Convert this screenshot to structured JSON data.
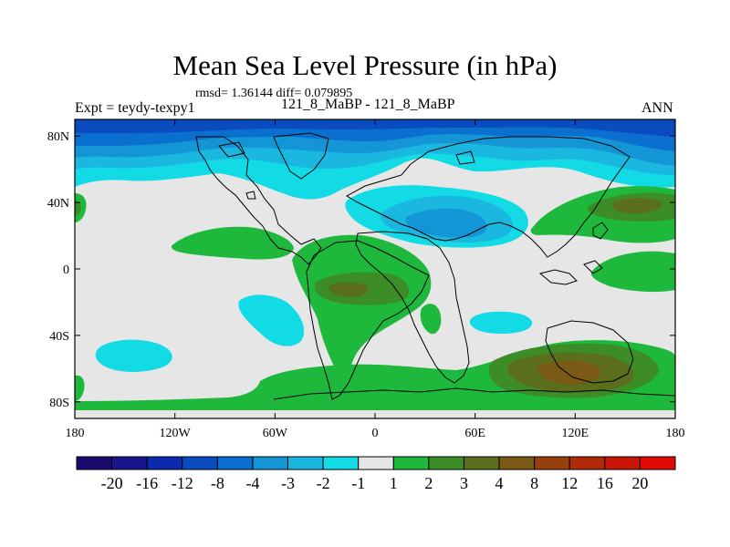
{
  "title": "Mean Sea Level Pressure (in hPa)",
  "stats": "rmsd= 1.36144 diff= 0.079895",
  "experiment": "Expt = teydy-texpy1",
  "case_label": "121_8_MaBP - 121_8_MaBP",
  "season": "ANN",
  "lat_ticks": [
    "80N",
    "40N",
    "0",
    "40S",
    "80S"
  ],
  "lon_ticks": [
    "180",
    "120W",
    "60W",
    "0",
    "60E",
    "120E",
    "180"
  ],
  "colorbar": {
    "labels": [
      "-20",
      "-16",
      "-12",
      "-8",
      "-4",
      "-3",
      "-2",
      "-1",
      "1",
      "2",
      "3",
      "4",
      "8",
      "12",
      "16",
      "20"
    ],
    "colors": [
      "#1a0a6b",
      "#18168f",
      "#0b2ab0",
      "#0a4cbf",
      "#0a6fcf",
      "#1496d6",
      "#1ab8e0",
      "#12dbe6",
      "#e6e6e6",
      "#1eb83c",
      "#3c8c28",
      "#5a6e1e",
      "#7a5a14",
      "#96400e",
      "#b02a08",
      "#c81606",
      "#e00a04"
    ]
  }
}
